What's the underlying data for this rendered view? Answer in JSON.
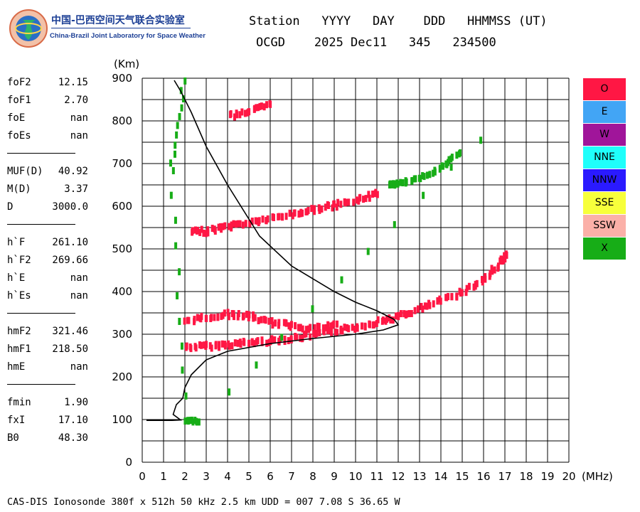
{
  "logo": {
    "cn": "中国-巴西空间天气联合实验室",
    "en": "China-Brazil Joint Laboratory for Space Weather"
  },
  "header": {
    "line1": "Station   YYYY   DAY    DDD   HHMMSS (UT)",
    "line2": "OCGD    2025 Dec11   345   234500"
  },
  "params": [
    {
      "name": "foF2",
      "value": "12.15"
    },
    {
      "name": "foF1",
      "value": "2.70"
    },
    {
      "name": "foE",
      "value": "nan"
    },
    {
      "name": "foEs",
      "value": "nan"
    },
    {
      "sep": true
    },
    {
      "name": "MUF(D)",
      "value": "40.92"
    },
    {
      "name": "M(D)",
      "value": "3.37"
    },
    {
      "name": "D",
      "value": "3000.0"
    },
    {
      "sep": true
    },
    {
      "name": "h`F",
      "value": "261.10"
    },
    {
      "name": "h`F2",
      "value": "269.66"
    },
    {
      "name": "h`E",
      "value": "nan"
    },
    {
      "name": "h`Es",
      "value": "nan"
    },
    {
      "sep": true
    },
    {
      "name": "hmF2",
      "value": "321.46"
    },
    {
      "name": "hmF1",
      "value": "218.50"
    },
    {
      "name": "hmE",
      "value": "nan"
    },
    {
      "sep": true
    },
    {
      "name": "fmin",
      "value": "1.90"
    },
    {
      "name": "fxI",
      "value": "17.10"
    },
    {
      "name": "B0",
      "value": "48.30"
    }
  ],
  "legend": [
    {
      "label": "O",
      "color": "#ff1744"
    },
    {
      "label": "E",
      "color": "#42a5f5"
    },
    {
      "label": "W",
      "color": "#a0159a"
    },
    {
      "label": "NNE",
      "color": "#1ffffb"
    },
    {
      "label": "NNW",
      "color": "#2a1aff"
    },
    {
      "label": "SSE",
      "color": "#f7ff3b"
    },
    {
      "label": "SSW",
      "color": "#fbb0a8"
    },
    {
      "label": "X",
      "color": "#17ad17"
    }
  ],
  "footer": "CAS-DIS Ionosonde 380f x 512h 50 kHz 2.5 km UDD = 007 7.08 S 36.65 W",
  "chart_data": {
    "type": "scatter",
    "title": "",
    "xlabel": "(MHz)",
    "ylabel": "(Km)",
    "xlim": [
      0,
      20
    ],
    "ylim": [
      0,
      900
    ],
    "x_ticks": [
      "0",
      "1",
      "2",
      "3",
      "4",
      "5",
      "6",
      "7",
      "8",
      "9",
      "10",
      "11",
      "12",
      "13",
      "14",
      "15",
      "16",
      "17",
      "18",
      "19",
      "20"
    ],
    "y_ticks": [
      "0",
      "100",
      "200",
      "300",
      "400",
      "500",
      "600",
      "700",
      "800",
      "900"
    ],
    "grid": true,
    "series": [
      {
        "name": "O",
        "color": "#ff1744",
        "traces": [
          [
            [
              2.0,
              268
            ],
            [
              3.0,
              270
            ],
            [
              4.0,
              274
            ],
            [
              5.0,
              279
            ],
            [
              6.0,
              283
            ],
            [
              7.0,
              288
            ],
            [
              8.0,
              297
            ],
            [
              9.0,
              306
            ],
            [
              10.0,
              315
            ],
            [
              11.0,
              328
            ],
            [
              12.0,
              340
            ],
            [
              13.0,
              358
            ],
            [
              14.0,
              378
            ],
            [
              15.0,
              398
            ],
            [
              16.0,
              428
            ],
            [
              16.8,
              470
            ],
            [
              17.0,
              485
            ]
          ],
          [
            [
              2.3,
              537
            ],
            [
              3.0,
              540
            ],
            [
              4.0,
              551
            ],
            [
              5.0,
              560
            ],
            [
              6.0,
              569
            ],
            [
              7.0,
              580
            ],
            [
              8.0,
              590
            ],
            [
              9.0,
              600
            ],
            [
              10.0,
              612
            ],
            [
              11.0,
              630
            ]
          ],
          [
            [
              4.0,
              810
            ],
            [
              5.0,
              822
            ],
            [
              6.0,
              835
            ]
          ],
          [
            [
              2.0,
              330
            ],
            [
              3.0,
              338
            ],
            [
              4.0,
              345
            ],
            [
              5.0,
              340
            ],
            [
              6.0,
              325
            ],
            [
              7.0,
              318
            ],
            [
              8.0,
              312
            ],
            [
              9.0,
              320
            ]
          ]
        ]
      },
      {
        "name": "X",
        "color": "#17ad17",
        "traces": [
          [
            [
              1.9,
              892
            ],
            [
              1.3,
              680
            ],
            [
              2.0,
              95
            ],
            [
              2.6,
              95
            ],
            [
              15.8,
              755
            ]
          ],
          [
            [
              11.5,
              648
            ],
            [
              12.0,
              652
            ],
            [
              13.0,
              665
            ],
            [
              14.0,
              690
            ],
            [
              14.8,
              722
            ]
          ]
        ]
      }
    ],
    "profile": [
      [
        0.2,
        98
      ],
      [
        1.4,
        98
      ],
      [
        1.8,
        99
      ],
      [
        1.45,
        112
      ],
      [
        1.6,
        135
      ],
      [
        1.9,
        150
      ],
      [
        2.0,
        175
      ],
      [
        2.3,
        205
      ],
      [
        3.0,
        240
      ],
      [
        4.0,
        260
      ],
      [
        6.0,
        278
      ],
      [
        8.0,
        290
      ],
      [
        10.0,
        300
      ],
      [
        11.3,
        310
      ],
      [
        12.0,
        322
      ],
      [
        11.8,
        335
      ],
      [
        11.0,
        355
      ],
      [
        10.0,
        375
      ],
      [
        9.0,
        400
      ],
      [
        7.0,
        460
      ],
      [
        5.5,
        530
      ],
      [
        4.0,
        650
      ],
      [
        3.0,
        740
      ],
      [
        2.3,
        820
      ],
      [
        1.8,
        870
      ],
      [
        1.5,
        895
      ]
    ]
  }
}
